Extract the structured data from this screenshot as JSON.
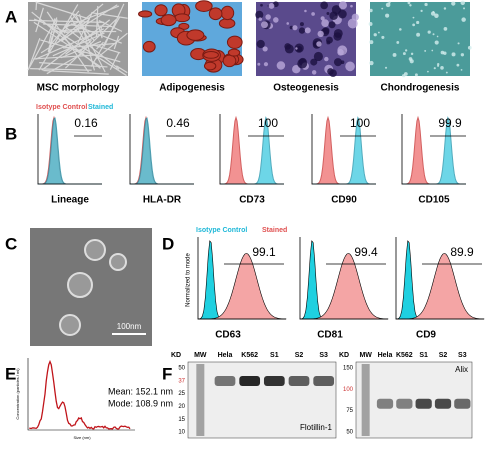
{
  "panels": {
    "A": {
      "label": "A",
      "captions": [
        "MSC morphology",
        "Adipogenesis",
        "Osteogenesis",
        "Chondrogenesis"
      ]
    },
    "B": {
      "label": "B",
      "legend": [
        "Isotype Control",
        "Stained"
      ],
      "plots": [
        {
          "marker": "Lineage",
          "value": 0.16
        },
        {
          "marker": "HLA-DR",
          "value": 0.46
        },
        {
          "marker": "CD73",
          "value": 100
        },
        {
          "marker": "CD90",
          "value": 100
        },
        {
          "marker": "CD105",
          "value": 99.9
        }
      ]
    },
    "C": {
      "label": "C",
      "scale": "100nm"
    },
    "D": {
      "label": "D",
      "legend": [
        "Isotype Control",
        "Stained"
      ],
      "y_label": "Normalized to mode",
      "plots": [
        {
          "marker": "CD63",
          "value": 99.1
        },
        {
          "marker": "CD81",
          "value": 99.4
        },
        {
          "marker": "CD9",
          "value": 89.9
        }
      ]
    },
    "E": {
      "label": "E",
      "y_label": "Concentration (particles / ml)",
      "x_label": "Size (nm)",
      "mean": "Mean:  152.1 nm",
      "mode": "Mode:  108.9 nm"
    },
    "F": {
      "label": "F",
      "blots": [
        {
          "kd_label": "KD",
          "lanes": [
            "MW",
            "Hela",
            "K562",
            "S1",
            "S2",
            "S3"
          ],
          "kd": [
            "50",
            "37",
            "25",
            "20",
            "15",
            "10"
          ],
          "protein": "Flotillin-1"
        },
        {
          "kd_label": "KD",
          "lanes": [
            "MW",
            "Hela",
            "K562",
            "S1",
            "S2",
            "S3"
          ],
          "kd": [
            "150",
            "100",
            "75",
            "50"
          ],
          "protein": "Alix"
        }
      ]
    }
  }
}
